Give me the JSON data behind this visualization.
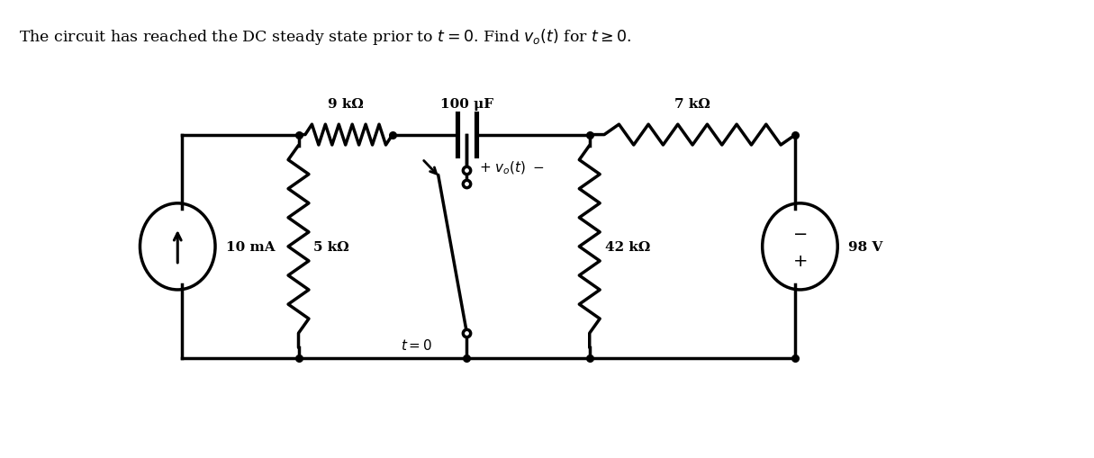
{
  "bg_color": "#ffffff",
  "line_color": "#000000",
  "lw": 2.5,
  "fig_w": 12.15,
  "fig_h": 5.1,
  "title": "The circuit has reached the DC steady state prior to $t=0$. Find $v_o(t)$ for $t\\geq0$.",
  "R1_label": "9 kΩ",
  "C1_label": "100 μF",
  "R2_label": "7 kΩ",
  "R3_label": "5 kΩ",
  "R4_label": "42 kΩ",
  "IS_label": "10 mA",
  "VS_label": "98 V",
  "sw_label": "$t=0$",
  "vo_label": "$+ \\ v_o(t) \\ -$"
}
